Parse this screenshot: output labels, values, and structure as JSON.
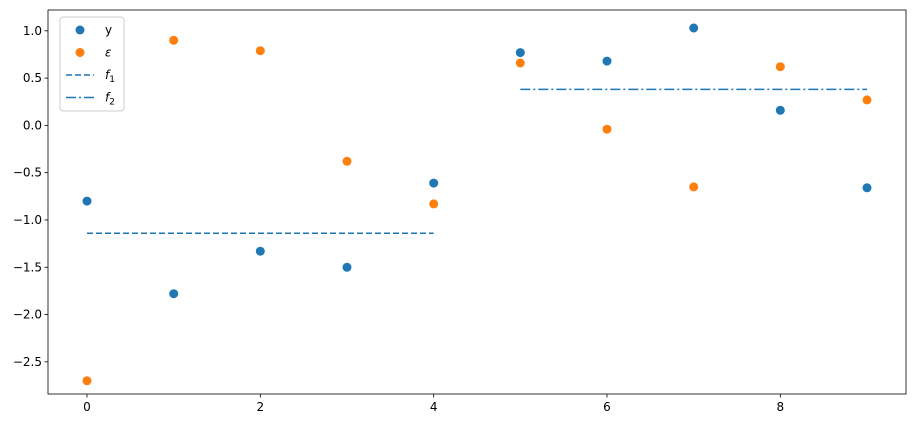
{
  "chart_data": {
    "type": "scatter",
    "xlim": [
      -0.45,
      9.45
    ],
    "ylim": [
      -2.84,
      1.22
    ],
    "xticks": [
      0,
      2,
      4,
      6,
      8
    ],
    "yticks": [
      -2.5,
      -2.0,
      -1.5,
      -1.0,
      -0.5,
      0.0,
      0.5,
      1.0
    ],
    "grid": false,
    "legend_position": "top-left",
    "series": [
      {
        "name": "y",
        "kind": "points",
        "color": "#1f77b4",
        "x": [
          0,
          1,
          2,
          3,
          4,
          5,
          6,
          7,
          8,
          9
        ],
        "y": [
          -0.8,
          -1.78,
          -1.33,
          -1.5,
          -0.61,
          0.77,
          0.68,
          1.03,
          0.16,
          -0.66
        ]
      },
      {
        "name": "ε",
        "kind": "points",
        "color": "#ff7f0e",
        "x": [
          0,
          1,
          2,
          3,
          4,
          5,
          6,
          7,
          8,
          9
        ],
        "y": [
          -2.7,
          0.9,
          0.79,
          -0.38,
          -0.83,
          0.66,
          -0.04,
          -0.65,
          0.62,
          0.27
        ]
      },
      {
        "name": "f",
        "name_subscript": "1",
        "kind": "dashed-line",
        "color": "#1f77b4",
        "x": [
          0,
          4
        ],
        "y": [
          -1.14,
          -1.14
        ]
      },
      {
        "name": "f",
        "name_subscript": "2",
        "kind": "dashdot-line",
        "color": "#1f77b4",
        "x": [
          5,
          9
        ],
        "y": [
          0.38,
          0.38
        ]
      }
    ]
  }
}
